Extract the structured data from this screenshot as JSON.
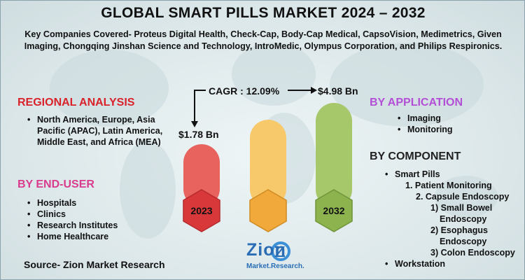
{
  "title": "GLOBAL SMART PILLS MARKET 2024 – 2032",
  "companies_text": "Key Companies Covered- Proteus Digital Health, Check-Cap, Body-Cap Medical, CapsoVision, Medimetrics, Given Imaging, Chongqing Jinshan Science and Technology, IntroMedic, Olympus Corporation, and Philips Respironics.",
  "regional": {
    "heading": "REGIONAL ANALYSIS",
    "items": [
      "North America, Europe, Asia Pacific (APAC), Latin America, Middle East, and Africa (MEA)"
    ]
  },
  "end_user": {
    "heading": "BY END-USER",
    "items": [
      "Hospitals",
      "Clinics",
      "Research Institutes",
      "Home Healthcare"
    ]
  },
  "application": {
    "heading": "BY APPLICATION",
    "items": [
      "Imaging",
      "Monitoring"
    ]
  },
  "component": {
    "heading": "BY COMPONENT",
    "smart_pills": "Smart Pills",
    "sub1": "1. Patient Monitoring",
    "sub2": "2. Capsule Endoscopy",
    "sub2a_line1": "1) Small Bowel",
    "sub2a_line2": "Endoscopy",
    "sub2b_line1": "2) Esophagus",
    "sub2b_line2": "Endoscopy",
    "sub2c": "3) Colon Endoscopy",
    "workstation": "Workstation"
  },
  "market": {
    "cagr_label": "CAGR : 12.09%",
    "start_value": "$1.78 Bn",
    "end_value": "$4.98 Bn",
    "start_year": "2023",
    "end_year": "2032"
  },
  "source": "Source- Zion Market Research",
  "logo": {
    "word": "Zion",
    "sub": "Market.Research."
  },
  "colors": {
    "title": "#111111",
    "regional_heading": "#d9222a",
    "end_user_heading": "#d93c8e",
    "application_heading": "#b34fd6",
    "bar_2023": "#e8635e",
    "bar_mid": "#f7c96a",
    "bar_2032": "#a6c86a",
    "hex_2023": "#d9383a",
    "hex_mid": "#f0a93a",
    "hex_2032": "#8cb34e"
  }
}
